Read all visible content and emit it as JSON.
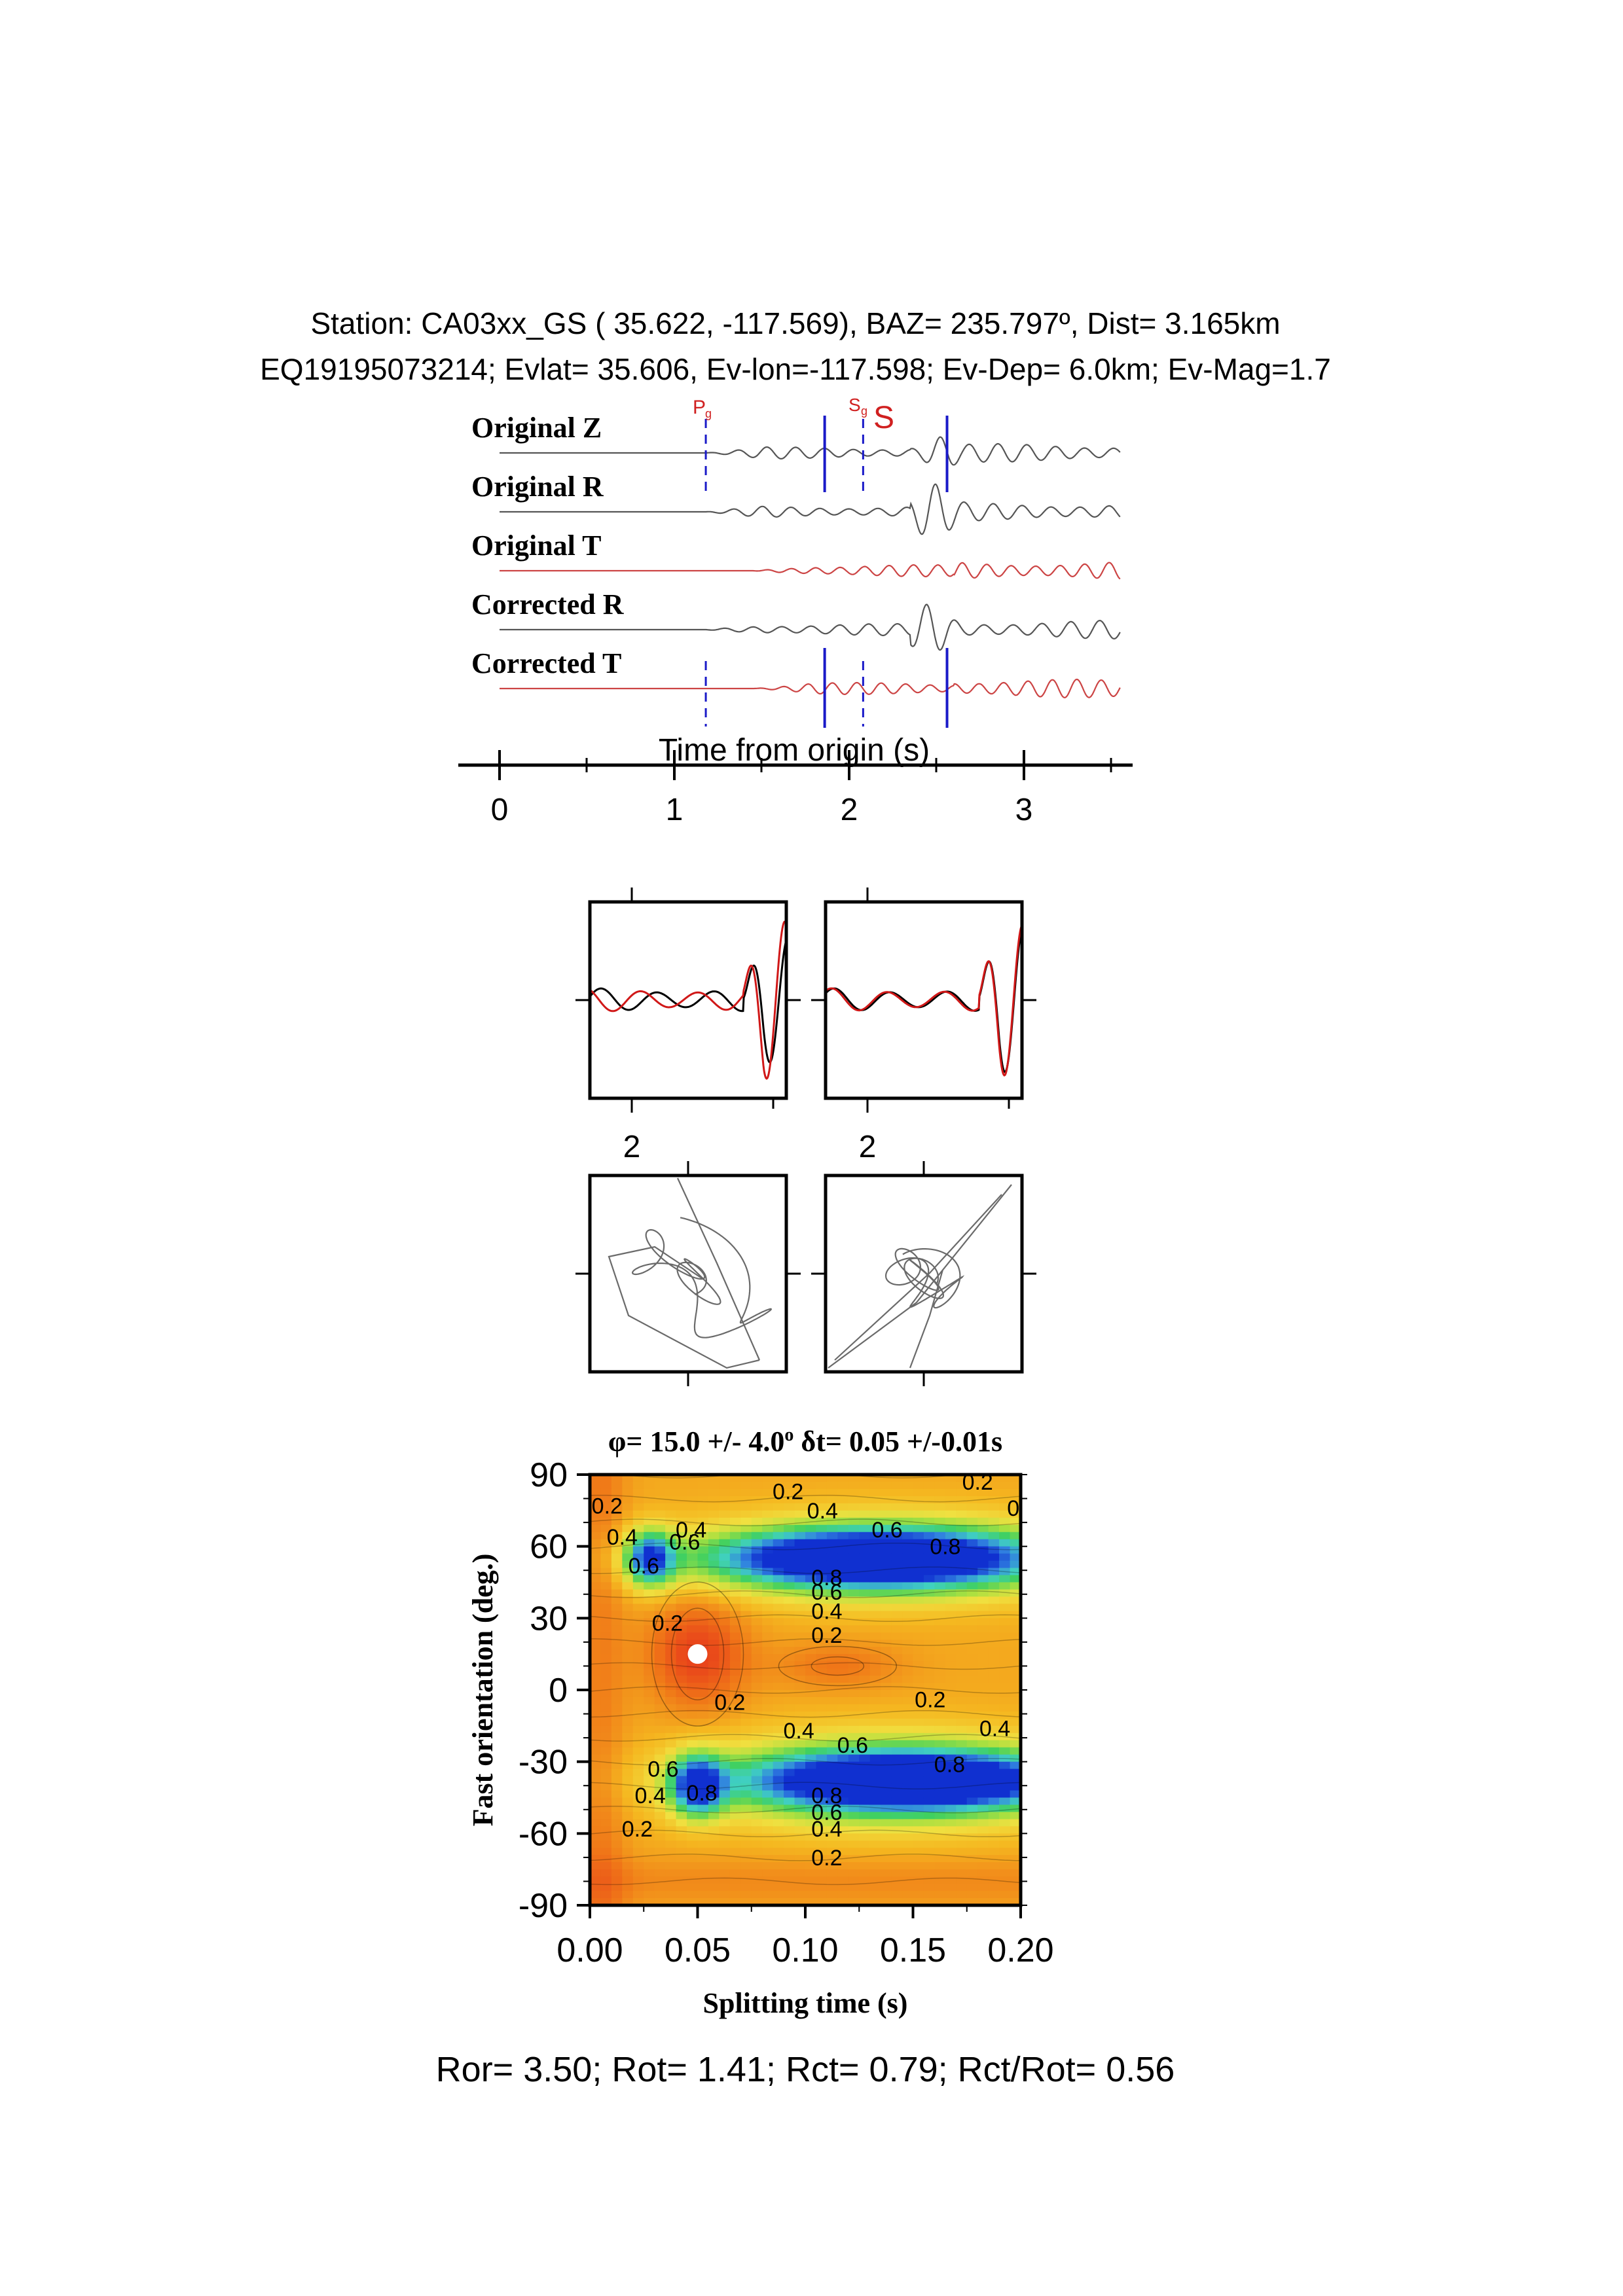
{
  "header": {
    "line1": "Station: CA03xx_GS ( 35.622, -117.569), BAZ=  235.797º, Dist=    3.165km",
    "line2": "EQ19195073214; Evlat=  35.606, Ev-lon=-117.598; Ev-Dep=  6.0km; Ev-Mag=1.7"
  },
  "traces": {
    "labels": [
      "Original Z",
      "Original R",
      "Original T",
      "Corrected R",
      "Corrected T"
    ],
    "trace_colors": [
      "#555555",
      "#555555",
      "#cc4444",
      "#555555",
      "#cc4444"
    ],
    "phase_labels": {
      "pg_main": "P",
      "pg_sub": "g",
      "sg_main": "S",
      "sg_sub": "g",
      "s": "S"
    },
    "time_axis_label": "Time from origin (s)",
    "time_ticks": [
      "0",
      "1",
      "2",
      "3"
    ],
    "markers": {
      "pg_dashed": 1.18,
      "window_start": 1.86,
      "sg_dashed": 2.08,
      "window_end": 2.56
    },
    "xlim": [
      0,
      3.55
    ]
  },
  "waveform_panels": {
    "tick_label_left": "2",
    "tick_label_right": "2"
  },
  "grid_title": {
    "phi_symbol": "φ",
    "phi_text": "= 15.0 +/- 4.0",
    "phi_deg": "o",
    "dt_symbol": "δ",
    "dt_text": "t= 0.05 +/-0.01s"
  },
  "chart_data": {
    "type": "heatmap",
    "title": "φ= 15.0 +/- 4.0º δt= 0.05 +/-0.01s",
    "xlabel": "Splitting time (s)",
    "ylabel": "Fast orientation (deg.)",
    "xlim": [
      0.0,
      0.2
    ],
    "ylim": [
      -90,
      90
    ],
    "x_ticks": [
      "0.00",
      "0.05",
      "0.10",
      "0.15",
      "0.20"
    ],
    "y_ticks": [
      "90",
      "60",
      "30",
      "0",
      "-30",
      "-60",
      "-90"
    ],
    "best_fit": {
      "dt": 0.05,
      "phi": 15.0
    },
    "colorscale": [
      "#e8401a",
      "#f07818",
      "#f5b820",
      "#f0e040",
      "#a8e040",
      "#40d060",
      "#40d0c0",
      "#3080e0",
      "#1030d0"
    ],
    "contour_labels": [
      {
        "text": "0.2",
        "dt": 0.008,
        "phi": 77
      },
      {
        "text": "0.4",
        "dt": 0.015,
        "phi": 64
      },
      {
        "text": "0.6",
        "dt": 0.025,
        "phi": 52
      },
      {
        "text": "0.6",
        "dt": 0.044,
        "phi": 62
      },
      {
        "text": "0.4",
        "dt": 0.047,
        "phi": 67
      },
      {
        "text": "0.2",
        "dt": 0.036,
        "phi": 28
      },
      {
        "text": "0.2",
        "dt": 0.092,
        "phi": 83
      },
      {
        "text": "0.4",
        "dt": 0.108,
        "phi": 75
      },
      {
        "text": "0.6",
        "dt": 0.138,
        "phi": 67
      },
      {
        "text": "0.8",
        "dt": 0.165,
        "phi": 60
      },
      {
        "text": "0.2",
        "dt": 0.18,
        "phi": 87
      },
      {
        "text": "0.",
        "dt": 0.198,
        "phi": 76
      },
      {
        "text": "0.8",
        "dt": 0.11,
        "phi": 47
      },
      {
        "text": "0.6",
        "dt": 0.11,
        "phi": 41
      },
      {
        "text": "0.4",
        "dt": 0.11,
        "phi": 33
      },
      {
        "text": "0.2",
        "dt": 0.11,
        "phi": 23
      },
      {
        "text": "0.2",
        "dt": 0.065,
        "phi": -5
      },
      {
        "text": "0.2",
        "dt": 0.158,
        "phi": -4
      },
      {
        "text": "0.4",
        "dt": 0.097,
        "phi": -17
      },
      {
        "text": "0.6",
        "dt": 0.122,
        "phi": -23
      },
      {
        "text": "0.4",
        "dt": 0.188,
        "phi": -16
      },
      {
        "text": "0.8",
        "dt": 0.167,
        "phi": -31
      },
      {
        "text": "0.8",
        "dt": 0.052,
        "phi": -43
      },
      {
        "text": "0.6",
        "dt": 0.034,
        "phi": -33
      },
      {
        "text": "0.4",
        "dt": 0.028,
        "phi": -44
      },
      {
        "text": "0.2",
        "dt": 0.022,
        "phi": -58
      },
      {
        "text": "0.8",
        "dt": 0.11,
        "phi": -44
      },
      {
        "text": "0.6",
        "dt": 0.11,
        "phi": -51
      },
      {
        "text": "0.4",
        "dt": 0.11,
        "phi": -58
      },
      {
        "text": "0.2",
        "dt": 0.11,
        "phi": -70
      }
    ]
  },
  "footer": {
    "text": "Ror= 3.50; Rot= 1.41; Rct= 0.79; Rct/Rot= 0.56"
  }
}
